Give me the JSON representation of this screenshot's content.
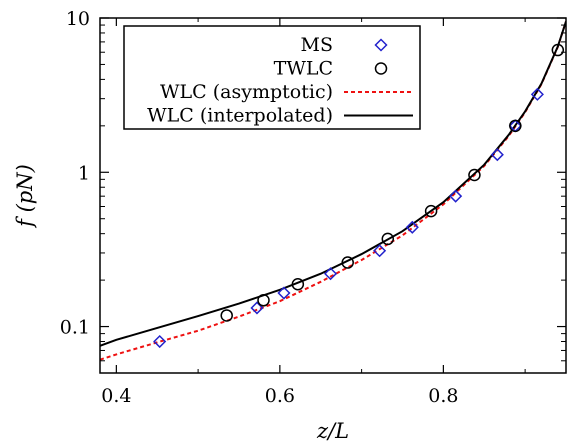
{
  "chart_data": {
    "type": "scatter",
    "title": "",
    "xlabel": "z/L",
    "ylabel": "f (pN)",
    "xlim": [
      0.38,
      0.95
    ],
    "ylim": [
      0.05,
      10
    ],
    "yscale": "log",
    "xticks": [
      0.4,
      0.6,
      0.8
    ],
    "xtick_labels": [
      "0.4",
      "0.6",
      "0.8"
    ],
    "yticks": [
      0.1,
      1,
      10
    ],
    "ytick_labels": [
      "0.1",
      "1",
      "10"
    ],
    "grid": false,
    "legend_position": "top-left",
    "series": [
      {
        "name": "MS",
        "kind": "points",
        "marker": "diamond",
        "color": "#2222cc",
        "x": [
          0.453,
          0.572,
          0.605,
          0.662,
          0.722,
          0.762,
          0.815,
          0.866,
          0.888,
          0.915
        ],
        "y": [
          0.08,
          0.132,
          0.165,
          0.22,
          0.31,
          0.44,
          0.7,
          1.3,
          2.0,
          3.2
        ]
      },
      {
        "name": "TWLC",
        "kind": "points",
        "marker": "circle",
        "color": "#000000",
        "x": [
          0.535,
          0.58,
          0.622,
          0.683,
          0.732,
          0.785,
          0.838,
          0.888,
          0.94
        ],
        "y": [
          0.118,
          0.148,
          0.188,
          0.26,
          0.37,
          0.56,
          0.96,
          2.0,
          6.2
        ]
      },
      {
        "name": "WLC (asymptotic)",
        "kind": "line",
        "dash": "dashed",
        "color": "#ee1111",
        "x": [
          0.38,
          0.4,
          0.45,
          0.5,
          0.55,
          0.6,
          0.65,
          0.7,
          0.75,
          0.8,
          0.85,
          0.88,
          0.9,
          0.92,
          0.94,
          0.95
        ],
        "y": [
          0.061,
          0.066,
          0.079,
          0.094,
          0.116,
          0.146,
          0.195,
          0.27,
          0.39,
          0.62,
          1.1,
          1.72,
          2.45,
          3.73,
          6.5,
          9.5
        ]
      },
      {
        "name": "WLC (interpolated)",
        "kind": "line",
        "dash": "solid",
        "color": "#000000",
        "x": [
          0.38,
          0.4,
          0.45,
          0.5,
          0.55,
          0.6,
          0.65,
          0.7,
          0.75,
          0.8,
          0.85,
          0.88,
          0.9,
          0.92,
          0.94,
          0.95
        ],
        "y": [
          0.075,
          0.082,
          0.098,
          0.117,
          0.141,
          0.173,
          0.22,
          0.295,
          0.415,
          0.64,
          1.12,
          1.75,
          2.48,
          3.76,
          6.53,
          9.5
        ]
      }
    ]
  }
}
